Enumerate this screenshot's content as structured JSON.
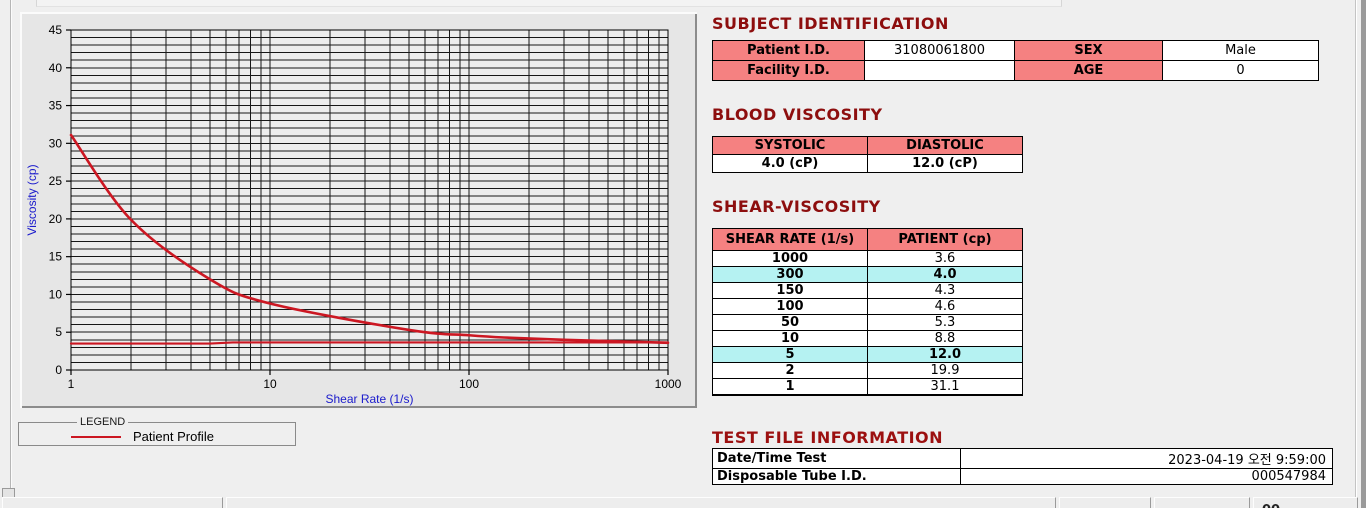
{
  "chart_data": {
    "type": "line",
    "title": "",
    "xlabel": "Shear Rate (1/s)",
    "ylabel": "Viscosity (cp)",
    "x_scale": "log",
    "xlim": [
      1,
      1000
    ],
    "ylim": [
      0,
      45
    ],
    "y_major_step": 5,
    "y_minor_step": 1,
    "x_ticks": [
      1,
      10,
      100,
      1000
    ],
    "grid": true,
    "axis_title_color": "#1a1acc",
    "grid_color": "#161616",
    "plot_bg": "#ececec",
    "legend": {
      "title": "LEGEND",
      "entries": [
        "Patient Profile"
      ],
      "position": "below-left"
    },
    "series": [
      {
        "name": "Patient Profile",
        "color": "#cc1722",
        "width": 2.6,
        "smooth": true,
        "x": [
          1,
          2,
          5,
          10,
          50,
          100,
          150,
          300,
          1000
        ],
        "y": [
          31.1,
          19.9,
          12.0,
          8.8,
          5.3,
          4.6,
          4.3,
          4.0,
          3.6
        ]
      },
      {
        "name": "baseline",
        "color": "#cc1722",
        "width": 2.2,
        "smooth": false,
        "x": [
          1,
          5,
          6.5,
          1000
        ],
        "y": [
          3.5,
          3.5,
          3.65,
          3.65
        ]
      }
    ]
  },
  "subject_identification": {
    "title": "SUBJECT IDENTIFICATION",
    "rows": [
      {
        "label1": "Patient I.D.",
        "value1": "31080061800",
        "label2": "SEX",
        "value2": "Male"
      },
      {
        "label1": "Facility I.D.",
        "value1": "",
        "label2": "AGE",
        "value2": "0"
      }
    ]
  },
  "blood_viscosity": {
    "title": "BLOOD VISCOSITY",
    "headers": [
      "SYSTOLIC",
      "DIASTOLIC"
    ],
    "values": [
      "4.0 (cP)",
      "12.0 (cP)"
    ]
  },
  "shear_viscosity": {
    "title": "SHEAR-VISCOSITY",
    "headers": [
      "SHEAR RATE (1/s)",
      "PATIENT (cp)"
    ],
    "rows": [
      {
        "shear_rate": "1000",
        "patient": "3.6",
        "highlighted": false
      },
      {
        "shear_rate": "300",
        "patient": "4.0",
        "highlighted": true
      },
      {
        "shear_rate": "150",
        "patient": "4.3",
        "highlighted": false
      },
      {
        "shear_rate": "100",
        "patient": "4.6",
        "highlighted": false
      },
      {
        "shear_rate": "50",
        "patient": "5.3",
        "highlighted": false
      },
      {
        "shear_rate": "10",
        "patient": "8.8",
        "highlighted": false
      },
      {
        "shear_rate": "5",
        "patient": "12.0",
        "highlighted": true
      },
      {
        "shear_rate": "2",
        "patient": "19.9",
        "highlighted": false
      },
      {
        "shear_rate": "1",
        "patient": "31.1",
        "highlighted": false
      }
    ],
    "highlight_color": "#b5f2f2"
  },
  "test_file_information": {
    "title": "TEST FILE INFORMATION",
    "rows": [
      {
        "label": "Date/Time Test",
        "value": "2023-04-19  오전 9:59:00"
      },
      {
        "label": "Disposable Tube I.D.",
        "value": "000547984"
      }
    ]
  },
  "bottom_bar": {
    "partial_text": "00"
  },
  "colors": {
    "section_title": "#8d0e0e",
    "table_header_pink": "#f58181",
    "highlight_cyan": "#b5f2f2",
    "series_red": "#cc1722",
    "axis_blue": "#1a1acc"
  }
}
